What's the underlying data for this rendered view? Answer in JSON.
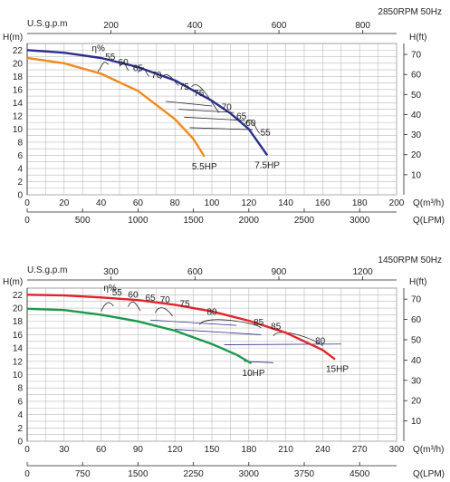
{
  "chart_data": [
    {
      "type": "line",
      "title": "2850RPM  50Hz",
      "top_axis_label": "U.S.g.p.m",
      "top_ticks": [
        "200",
        "400",
        "600",
        "800"
      ],
      "top_ticks_q": [
        45.4,
        90.8,
        136.3,
        181.7
      ],
      "left_axis_label": "H(m)",
      "left_ticks": [
        "0",
        "2",
        "4",
        "6",
        "8",
        "10",
        "12",
        "14",
        "16",
        "18",
        "20",
        "22"
      ],
      "right_axis_label": "H(ft)",
      "right_ticks": [
        "10",
        "20",
        "30",
        "40",
        "50",
        "60",
        "70"
      ],
      "xlabel": "Q(m³/h)",
      "x_ticks": [
        "0",
        "20",
        "40",
        "60",
        "80",
        "100",
        "120",
        "140",
        "160",
        "180",
        "200"
      ],
      "xlabel2": "Q(LPM)",
      "x2_ticks": [
        "0",
        "500",
        "1000",
        "1500",
        "2000",
        "2500",
        "3000"
      ],
      "xlim": [
        0,
        200
      ],
      "ylim": [
        0,
        23
      ],
      "grid": true,
      "efficiency_label": "η%",
      "series": [
        {
          "name": "5.5HP",
          "color": "#f08a1e",
          "x": [
            0,
            20,
            40,
            60,
            80,
            90,
            96
          ],
          "y": [
            20.8,
            20.0,
            18.4,
            15.8,
            11.5,
            8.5,
            5.8
          ]
        },
        {
          "name": "7.5HP",
          "color": "#2b2f8c",
          "x": [
            0,
            20,
            40,
            60,
            80,
            100,
            110,
            120,
            130
          ],
          "y": [
            22.0,
            21.6,
            20.8,
            19.4,
            17.4,
            14.3,
            12.4,
            10.0,
            6.0
          ]
        }
      ],
      "efficiency_labels": [
        {
          "text": "55",
          "q": 45,
          "h": 20.5
        },
        {
          "text": "60",
          "q": 52,
          "h": 19.7
        },
        {
          "text": "65",
          "q": 60,
          "h": 18.8
        },
        {
          "text": "70",
          "q": 70,
          "h": 17.8
        },
        {
          "text": "75",
          "q": 85,
          "h": 16.0
        },
        {
          "text": "75",
          "q": 93,
          "h": 15.0
        },
        {
          "text": "70",
          "q": 108,
          "h": 12.9
        },
        {
          "text": "65",
          "q": 116,
          "h": 11.5
        },
        {
          "text": "60",
          "q": 121,
          "h": 10.5
        },
        {
          "text": "55",
          "q": 129,
          "h": 9.0
        }
      ]
    },
    {
      "type": "line",
      "title": "1450RPM  50Hz",
      "top_axis_label": "U.S.g.p.m",
      "top_ticks": [
        "300",
        "600",
        "900",
        "1200"
      ],
      "top_ticks_q": [
        68.1,
        136.3,
        204.4,
        272.5
      ],
      "left_axis_label": "H(m)",
      "left_ticks": [
        "0",
        "2",
        "4",
        "6",
        "8",
        "10",
        "12",
        "14",
        "16",
        "18",
        "20",
        "22"
      ],
      "right_axis_label": "H(ft)",
      "right_ticks": [
        "10",
        "20",
        "30",
        "40",
        "50",
        "60",
        "70"
      ],
      "xlabel": "Q(m³/h)",
      "x_ticks": [
        "0",
        "30",
        "60",
        "90",
        "120",
        "150",
        "180",
        "210",
        "240",
        "270",
        "300"
      ],
      "xlabel2": "Q(LPM)",
      "x2_ticks": [
        "0",
        "750",
        "1500",
        "2250",
        "3000",
        "3750",
        "4500"
      ],
      "xlim": [
        0,
        300
      ],
      "ylim": [
        0,
        23
      ],
      "grid": true,
      "efficiency_label": "η%",
      "series": [
        {
          "name": "10HP",
          "color": "#1a9a4a",
          "x": [
            0,
            30,
            60,
            90,
            120,
            150,
            170,
            182
          ],
          "y": [
            19.9,
            19.7,
            19.0,
            18.0,
            16.6,
            14.6,
            13.0,
            11.7
          ]
        },
        {
          "name": "15HP",
          "color": "#e3232b",
          "x": [
            0,
            30,
            60,
            90,
            120,
            150,
            180,
            210,
            240,
            250
          ],
          "y": [
            22.0,
            21.9,
            21.6,
            21.2,
            20.5,
            19.5,
            18.1,
            16.3,
            13.7,
            12.3
          ]
        }
      ],
      "efficiency_labels": [
        {
          "text": "55",
          "q": 73,
          "h": 21.9
        },
        {
          "text": "60",
          "q": 86,
          "h": 21.6
        },
        {
          "text": "65",
          "q": 100,
          "h": 21.1
        },
        {
          "text": "70",
          "q": 112,
          "h": 20.8
        },
        {
          "text": "75",
          "q": 128,
          "h": 20.2
        },
        {
          "text": "80",
          "q": 150,
          "h": 19.0
        },
        {
          "text": "85",
          "q": 188,
          "h": 17.4
        },
        {
          "text": "85",
          "q": 202,
          "h": 16.8
        },
        {
          "text": "80",
          "q": 238,
          "h": 14.6
        }
      ]
    }
  ]
}
